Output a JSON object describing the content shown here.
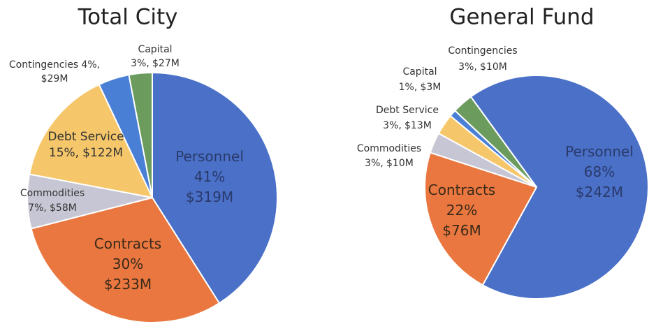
{
  "chart_data": [
    {
      "type": "pie",
      "title": "Total City",
      "categories": [
        "Personnel",
        "Contracts",
        "Commodities",
        "Debt Service",
        "Contingencies",
        "Capital"
      ],
      "values": [
        41,
        30,
        7,
        15,
        4,
        3
      ],
      "value_labels": [
        "41%",
        "30%",
        "7%,",
        "15%,",
        "4%,",
        "3%,"
      ],
      "amounts": [
        319,
        233,
        58,
        122,
        29,
        27
      ],
      "amount_labels": [
        "$319M",
        "$233M",
        "$58M",
        "$122M",
        "$29M",
        "$27M"
      ],
      "colors": [
        "#4a70c8",
        "#e9773f",
        "#c7c6d4",
        "#f6c76a",
        "#4a7fd6",
        "#6b9c5e"
      ]
    },
    {
      "type": "pie",
      "title": "General Fund",
      "categories": [
        "Personnel",
        "Contracts",
        "Commodities",
        "Debt Service",
        "Capital",
        "Contingencies"
      ],
      "values": [
        68,
        22,
        3,
        3,
        1,
        3
      ],
      "value_labels": [
        "68%",
        "22%",
        "3%,",
        "3%,",
        "1%,",
        "3%,"
      ],
      "amounts": [
        242,
        76,
        10,
        13,
        3,
        10
      ],
      "amount_labels": [
        "$242M",
        "$76M",
        "$10M",
        "$13M",
        "$3M",
        "$10M"
      ],
      "colors": [
        "#4a70c8",
        "#e9773f",
        "#c7c6d4",
        "#f6c76a",
        "#4a7fd6",
        "#6b9c5e"
      ]
    }
  ]
}
